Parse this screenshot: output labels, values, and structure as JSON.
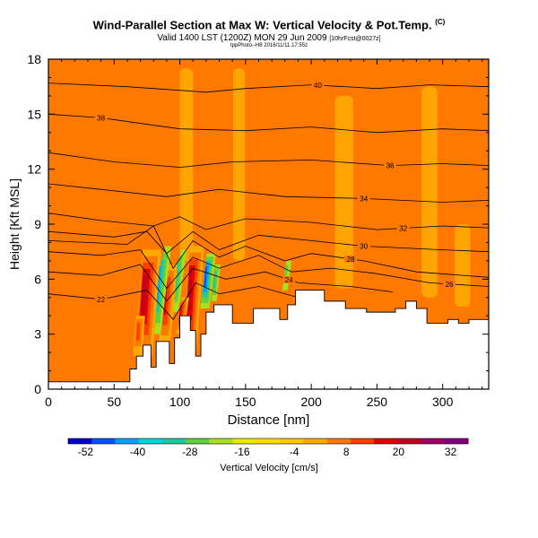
{
  "header": {
    "title": "Wind-Parallel Section at Max W: Vertical Velocity & Pot.Temp.",
    "title_badge": "(C)",
    "subtitle": "Valid 1400 LST (1200Z) MON 29 Jun 2009",
    "subtitle_tag": "[10hrFcst@0027z]",
    "run_info": "tppPhoto--H8 2016/11/11.17:55z"
  },
  "chart_data": {
    "type": "heatmap",
    "title": "Wind-Parallel Section at Max W: Vertical Velocity & Pot.Temp.",
    "xlabel": "Distance [nm]",
    "ylabel": "Height [Kft MSL]",
    "xlim": [
      0,
      335
    ],
    "ylim": [
      0,
      18
    ],
    "x_ticks": [
      0,
      50,
      100,
      150,
      200,
      250,
      300
    ],
    "y_ticks": [
      0,
      3,
      6,
      9,
      12,
      15,
      18
    ],
    "colorbar": {
      "label": "Vertical Velocity [cm/s]",
      "ticks": [
        -52,
        -40,
        -28,
        -16,
        -4,
        8,
        20,
        32
      ],
      "range": [
        -56,
        36
      ],
      "colors": [
        "#0000c8",
        "#0050ff",
        "#00a0ff",
        "#00d8d8",
        "#20c8a0",
        "#60d040",
        "#a8e020",
        "#e8ec00",
        "#ffdc00",
        "#ffc800",
        "#ffa800",
        "#ff7800",
        "#ff3c00",
        "#e00000",
        "#c00020",
        "#a00060",
        "#800080"
      ]
    },
    "background_w": 4,
    "terrain": [
      [
        0,
        0.4
      ],
      [
        55,
        0.4
      ],
      [
        62,
        1.1
      ],
      [
        67,
        1.8
      ],
      [
        72,
        2.4
      ],
      [
        78,
        1.2
      ],
      [
        82,
        2.6
      ],
      [
        88,
        2.6
      ],
      [
        92,
        1.4
      ],
      [
        96,
        2.8
      ],
      [
        100,
        4.0
      ],
      [
        108,
        3.2
      ],
      [
        112,
        1.8
      ],
      [
        116,
        3.0
      ],
      [
        120,
        4.2
      ],
      [
        126,
        4.6
      ],
      [
        136,
        4.6
      ],
      [
        140,
        3.6
      ],
      [
        150,
        3.6
      ],
      [
        156,
        4.4
      ],
      [
        170,
        4.4
      ],
      [
        176,
        3.8
      ],
      [
        182,
        4.6
      ],
      [
        188,
        5.4
      ],
      [
        205,
        5.4
      ],
      [
        210,
        4.8
      ],
      [
        220,
        4.8
      ],
      [
        226,
        4.4
      ],
      [
        236,
        4.4
      ],
      [
        242,
        4.2
      ],
      [
        258,
        4.2
      ],
      [
        264,
        4.4
      ],
      [
        272,
        4.8
      ],
      [
        280,
        4.4
      ],
      [
        288,
        3.6
      ],
      [
        296,
        3.6
      ],
      [
        304,
        3.8
      ],
      [
        312,
        3.6
      ],
      [
        320,
        3.8
      ],
      [
        335,
        3.8
      ]
    ],
    "theta_contours": [
      {
        "label": "40",
        "pts": [
          [
            0,
            16.7
          ],
          [
            60,
            16.5
          ],
          [
            120,
            16.2
          ],
          [
            150,
            16.4
          ],
          [
            200,
            16.6
          ],
          [
            250,
            16.4
          ],
          [
            290,
            16.6
          ],
          [
            335,
            16.5
          ]
        ],
        "label_x": 205
      },
      {
        "label": "38",
        "pts": [
          [
            0,
            15.0
          ],
          [
            40,
            14.8
          ],
          [
            100,
            14.2
          ],
          [
            150,
            14.1
          ],
          [
            200,
            14.3
          ],
          [
            250,
            14.0
          ],
          [
            300,
            14.2
          ],
          [
            335,
            14.1
          ]
        ],
        "label_x": 40
      },
      {
        "label": "36",
        "pts": [
          [
            0,
            12.9
          ],
          [
            50,
            12.4
          ],
          [
            100,
            12.1
          ],
          [
            140,
            12.4
          ],
          [
            200,
            12.5
          ],
          [
            260,
            12.2
          ],
          [
            300,
            12.3
          ],
          [
            335,
            12.2
          ]
        ],
        "label_x": 260
      },
      {
        "label": "34",
        "pts": [
          [
            0,
            11.2
          ],
          [
            40,
            10.9
          ],
          [
            90,
            10.5
          ],
          [
            130,
            10.9
          ],
          [
            180,
            10.5
          ],
          [
            240,
            10.4
          ],
          [
            300,
            10.2
          ],
          [
            335,
            10.3
          ]
        ],
        "label_x": 240
      },
      {
        "label": "32",
        "pts": [
          [
            0,
            9.6
          ],
          [
            40,
            9.2
          ],
          [
            80,
            8.9
          ],
          [
            100,
            9.4
          ],
          [
            120,
            8.7
          ],
          [
            150,
            9.3
          ],
          [
            200,
            9.1
          ],
          [
            250,
            8.7
          ],
          [
            300,
            8.9
          ],
          [
            335,
            8.8
          ]
        ],
        "label_x": 270
      },
      {
        "label": "30",
        "pts": [
          [
            0,
            8.6
          ],
          [
            50,
            8.3
          ],
          [
            75,
            8.6
          ],
          [
            90,
            7.4
          ],
          [
            110,
            8.6
          ],
          [
            130,
            7.6
          ],
          [
            160,
            8.4
          ],
          [
            200,
            8.1
          ],
          [
            240,
            7.8
          ],
          [
            300,
            7.6
          ],
          [
            335,
            7.5
          ]
        ],
        "label_x": 240
      },
      {
        "label": "28",
        "pts": [
          [
            0,
            8.1
          ],
          [
            60,
            7.9
          ],
          [
            80,
            8.9
          ],
          [
            95,
            6.6
          ],
          [
            110,
            8.1
          ],
          [
            130,
            7.2
          ],
          [
            150,
            7.8
          ],
          [
            180,
            7.0
          ],
          [
            200,
            7.4
          ],
          [
            240,
            7.0
          ],
          [
            280,
            6.4
          ],
          [
            335,
            6.1
          ]
        ],
        "label_x": 230
      },
      {
        "label": "26",
        "pts": [
          [
            0,
            7.5
          ],
          [
            40,
            7.3
          ],
          [
            70,
            7.6
          ],
          [
            90,
            5.5
          ],
          [
            110,
            7.2
          ],
          [
            130,
            6.6
          ],
          [
            160,
            7.3
          ],
          [
            185,
            6.4
          ],
          [
            215,
            6.6
          ],
          [
            250,
            6.3
          ],
          [
            290,
            5.8
          ],
          [
            335,
            5.6
          ]
        ],
        "label_x": 305
      },
      {
        "label": "24",
        "pts": [
          [
            0,
            6.4
          ],
          [
            40,
            6.2
          ],
          [
            70,
            6.8
          ],
          [
            90,
            4.8
          ],
          [
            110,
            6.6
          ],
          [
            135,
            6.0
          ],
          [
            165,
            6.4
          ],
          [
            190,
            5.8
          ],
          [
            230,
            5.6
          ],
          [
            262,
            5.3
          ]
        ],
        "label_x": 183
      },
      {
        "label": "22",
        "pts": [
          [
            0,
            5.2
          ],
          [
            40,
            4.9
          ],
          [
            75,
            5.4
          ],
          [
            95,
            3.8
          ],
          [
            112,
            5.8
          ],
          [
            130,
            5.2
          ],
          [
            160,
            5.6
          ],
          [
            190,
            5.0
          ]
        ],
        "label_x": 40
      }
    ],
    "updrafts": [
      {
        "x": 72,
        "y0": 1.8,
        "y1": 7.6,
        "w": 14,
        "level": 1.0,
        "tilt": 7
      },
      {
        "x": 88,
        "y0": 2.4,
        "y1": 6.8,
        "w": 9,
        "level": 0.8,
        "tilt": 6
      },
      {
        "x": 107,
        "y0": 2.0,
        "y1": 7.8,
        "w": 11,
        "level": 1.0,
        "tilt": 6
      },
      {
        "x": 100,
        "y0": 3.0,
        "y1": 5.0,
        "w": 6,
        "level": 0.75,
        "tilt": 4
      },
      {
        "x": 68,
        "y0": 2.0,
        "y1": 4.0,
        "w": 7,
        "level": 0.65,
        "tilt": 2
      }
    ],
    "downdrafts": [
      {
        "x": 83,
        "y0": 3.0,
        "y1": 7.8,
        "w": 5,
        "level": 0.75,
        "tilt": 8
      },
      {
        "x": 97,
        "y0": 4.2,
        "y1": 7.6,
        "w": 4,
        "level": 0.55,
        "tilt": 6
      },
      {
        "x": 119,
        "y0": 4.4,
        "y1": 7.4,
        "w": 7,
        "level": 0.9,
        "tilt": 5
      },
      {
        "x": 126,
        "y0": 4.8,
        "y1": 6.8,
        "w": 4,
        "level": 0.5,
        "tilt": 3
      },
      {
        "x": 180,
        "y0": 5.4,
        "y1": 7.0,
        "w": 4,
        "level": 0.45,
        "tilt": 3
      }
    ],
    "warm_streaks": [
      {
        "x": 105,
        "y0": 7.0,
        "y1": 17.5,
        "w": 10
      },
      {
        "x": 145,
        "y0": 7.0,
        "y1": 17.5,
        "w": 9
      },
      {
        "x": 225,
        "y0": 5.5,
        "y1": 16.0,
        "w": 14
      },
      {
        "x": 290,
        "y0": 5.0,
        "y1": 16.5,
        "w": 12
      },
      {
        "x": 315,
        "y0": 4.5,
        "y1": 9.0,
        "w": 12
      }
    ]
  }
}
